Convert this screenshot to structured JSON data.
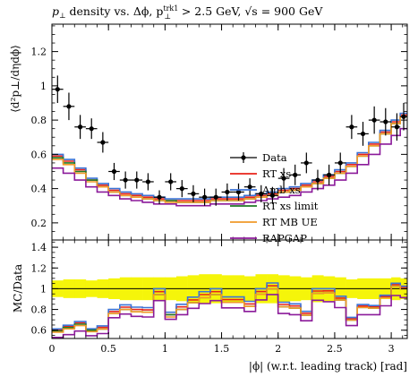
{
  "chart_data": {
    "type": "line",
    "title_parts": {
      "a": "p",
      "a_sub": "⊥",
      "b": " density vs. Δϕ, p",
      "b_sup": "trk1",
      "b_sub": "⊥",
      "c": " > 2.5 GeV, ",
      "d": "√s",
      "e": " = 900 GeV"
    },
    "ylabel_main": "⟨d²p⊥/dηdϕ⟩",
    "ylabel_ratio": "MC/Data",
    "xlabel": "|ϕ| (w.r.t. leading track) [rad]",
    "xlim": [
      0,
      3.1416
    ],
    "ylim_main": [
      0.1,
      1.36
    ],
    "ylim_ratio": [
      0.52,
      1.47
    ],
    "x_ticks": [
      "0",
      "0.5",
      "1",
      "1.5",
      "2",
      "2.5",
      "3"
    ],
    "y_ticks_main": [
      "0.2",
      "0.4",
      "0.6",
      "0.8",
      "1",
      "1.2"
    ],
    "y_ticks_ratio": [
      "0.6",
      "0.8",
      "1",
      "1.2",
      "1.4"
    ],
    "x": [
      0.05,
      0.15,
      0.25,
      0.35,
      0.45,
      0.55,
      0.65,
      0.75,
      0.85,
      0.95,
      1.05,
      1.15,
      1.25,
      1.35,
      1.45,
      1.55,
      1.65,
      1.75,
      1.85,
      1.95,
      2.05,
      2.15,
      2.25,
      2.35,
      2.45,
      2.55,
      2.65,
      2.75,
      2.85,
      2.95,
      3.05,
      3.11
    ],
    "data_series": {
      "name": "Data",
      "color": "#000000",
      "values": [
        0.98,
        0.88,
        0.76,
        0.75,
        0.67,
        0.5,
        0.45,
        0.45,
        0.44,
        0.35,
        0.44,
        0.4,
        0.37,
        0.35,
        0.35,
        0.38,
        0.38,
        0.41,
        0.37,
        0.36,
        0.46,
        0.48,
        0.55,
        0.45,
        0.48,
        0.55,
        0.76,
        0.72,
        0.8,
        0.79,
        0.76,
        0.82
      ],
      "errors": [
        0.08,
        0.08,
        0.07,
        0.06,
        0.06,
        0.05,
        0.05,
        0.05,
        0.05,
        0.04,
        0.05,
        0.05,
        0.05,
        0.05,
        0.05,
        0.05,
        0.05,
        0.05,
        0.05,
        0.05,
        0.06,
        0.06,
        0.06,
        0.06,
        0.06,
        0.06,
        0.07,
        0.07,
        0.08,
        0.08,
        0.08,
        0.08
      ]
    },
    "series": [
      {
        "name": "RT xs",
        "color": "#e8231a",
        "values": [
          0.59,
          0.56,
          0.51,
          0.45,
          0.42,
          0.39,
          0.37,
          0.36,
          0.35,
          0.34,
          0.33,
          0.33,
          0.33,
          0.33,
          0.34,
          0.34,
          0.34,
          0.35,
          0.36,
          0.37,
          0.39,
          0.4,
          0.42,
          0.44,
          0.47,
          0.5,
          0.54,
          0.6,
          0.66,
          0.73,
          0.79,
          0.83
        ]
      },
      {
        "name": "Amb xs",
        "color": "#3c73d6",
        "values": [
          0.6,
          0.57,
          0.52,
          0.46,
          0.43,
          0.4,
          0.38,
          0.37,
          0.36,
          0.35,
          0.34,
          0.34,
          0.34,
          0.34,
          0.35,
          0.35,
          0.35,
          0.36,
          0.37,
          0.38,
          0.4,
          0.41,
          0.43,
          0.45,
          0.48,
          0.51,
          0.55,
          0.61,
          0.67,
          0.74,
          0.8,
          0.84
        ]
      },
      {
        "name": "RT xs limit",
        "color": "#1f7a24",
        "values": [
          0.58,
          0.55,
          0.5,
          0.45,
          0.41,
          0.38,
          0.36,
          0.35,
          0.34,
          0.33,
          0.33,
          0.32,
          0.32,
          0.32,
          0.33,
          0.33,
          0.33,
          0.34,
          0.35,
          0.36,
          0.38,
          0.39,
          0.41,
          0.43,
          0.46,
          0.49,
          0.53,
          0.59,
          0.65,
          0.72,
          0.78,
          0.82
        ]
      },
      {
        "name": "RT MB UE",
        "color": "#f19a2a",
        "values": [
          0.57,
          0.54,
          0.49,
          0.44,
          0.41,
          0.38,
          0.36,
          0.35,
          0.34,
          0.33,
          0.32,
          0.32,
          0.32,
          0.32,
          0.33,
          0.33,
          0.33,
          0.34,
          0.35,
          0.36,
          0.38,
          0.39,
          0.41,
          0.43,
          0.46,
          0.49,
          0.53,
          0.59,
          0.65,
          0.72,
          0.78,
          0.82
        ]
      },
      {
        "name": "RAPGAP",
        "color": "#8b1a9a",
        "values": [
          0.52,
          0.49,
          0.45,
          0.41,
          0.38,
          0.36,
          0.34,
          0.33,
          0.32,
          0.31,
          0.31,
          0.3,
          0.3,
          0.3,
          0.31,
          0.31,
          0.31,
          0.32,
          0.33,
          0.34,
          0.35,
          0.36,
          0.38,
          0.4,
          0.42,
          0.45,
          0.49,
          0.54,
          0.6,
          0.66,
          0.71,
          0.75
        ]
      }
    ],
    "ratio_band": {
      "color": "#f5f50a",
      "errors": [
        0.08,
        0.09,
        0.09,
        0.08,
        0.09,
        0.1,
        0.11,
        0.11,
        0.11,
        0.11,
        0.11,
        0.12,
        0.13,
        0.14,
        0.14,
        0.13,
        0.13,
        0.12,
        0.14,
        0.14,
        0.13,
        0.12,
        0.11,
        0.13,
        0.12,
        0.11,
        0.09,
        0.1,
        0.1,
        0.1,
        0.11,
        0.1
      ]
    },
    "legend": {
      "position": "center-right",
      "entries": [
        "Data",
        "RT xs",
        "Amb xs",
        "RT xs limit",
        "RT MB UE",
        "RAPGAP"
      ]
    }
  }
}
